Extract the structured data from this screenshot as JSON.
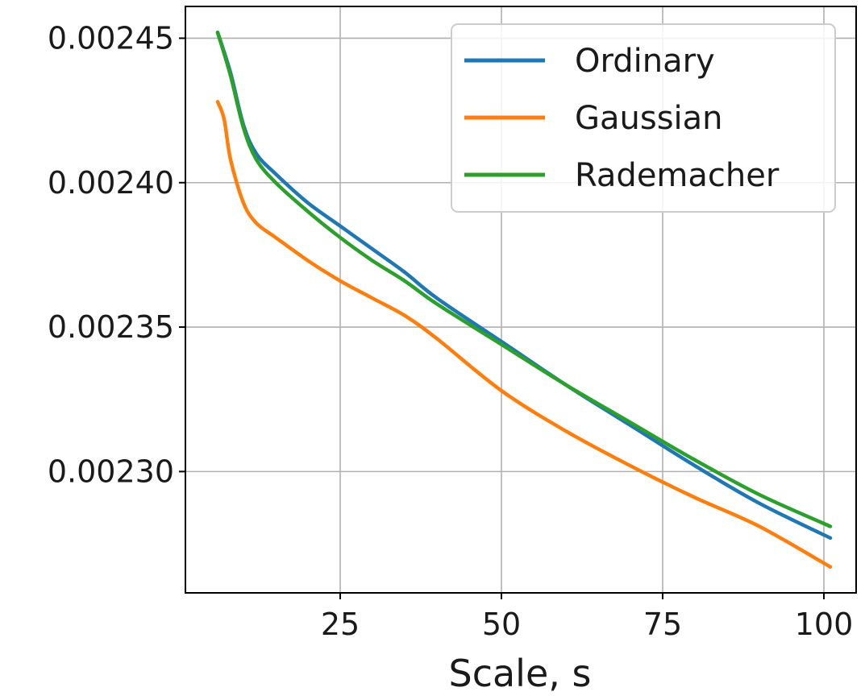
{
  "chart_data": {
    "type": "line",
    "title": "",
    "xlabel": "Scale, s",
    "ylabel": "",
    "xlim": [
      1,
      105
    ],
    "ylim": [
      0.002258,
      0.002461
    ],
    "x_ticks": [
      25,
      50,
      75,
      100
    ],
    "x_tick_labels": [
      "25",
      "50",
      "75",
      "100"
    ],
    "y_ticks": [
      0.0023,
      0.00235,
      0.0024,
      0.00245
    ],
    "y_tick_labels": [
      "0.00230",
      "0.00235",
      "0.00240",
      "0.00245"
    ],
    "grid": true,
    "legend_position": "top-right",
    "series": [
      {
        "name": "Ordinary",
        "color": "#1f77b4",
        "x": [
          6,
          8,
          10,
          12,
          15,
          20,
          25,
          30,
          35,
          40,
          50,
          60,
          70,
          80,
          90,
          101
        ],
        "y": [
          0.002452,
          0.002438,
          0.00242,
          0.00241,
          0.002403,
          0.002393,
          0.002385,
          0.002377,
          0.002369,
          0.00236,
          0.002345,
          0.00233,
          0.002316,
          0.002302,
          0.002289,
          0.002277
        ]
      },
      {
        "name": "Gaussian",
        "color": "#ff7f0e",
        "x": [
          6,
          7,
          8,
          10,
          12,
          15,
          20,
          25,
          30,
          35,
          40,
          50,
          60,
          70,
          80,
          90,
          101
        ],
        "y": [
          0.002428,
          0.002422,
          0.002408,
          0.002393,
          0.002386,
          0.002381,
          0.002373,
          0.002366,
          0.00236,
          0.002354,
          0.002346,
          0.002328,
          0.002314,
          0.002302,
          0.002291,
          0.002281,
          0.002267
        ]
      },
      {
        "name": "Rademacher",
        "color": "#2ca02c",
        "x": [
          6,
          8,
          10,
          12,
          15,
          20,
          25,
          30,
          35,
          40,
          50,
          60,
          70,
          80,
          90,
          101
        ],
        "y": [
          0.002452,
          0.002437,
          0.002419,
          0.002408,
          0.0024,
          0.00239,
          0.002381,
          0.002373,
          0.002366,
          0.002358,
          0.002344,
          0.00233,
          0.002317,
          0.002304,
          0.002292,
          0.002281
        ]
      }
    ]
  }
}
